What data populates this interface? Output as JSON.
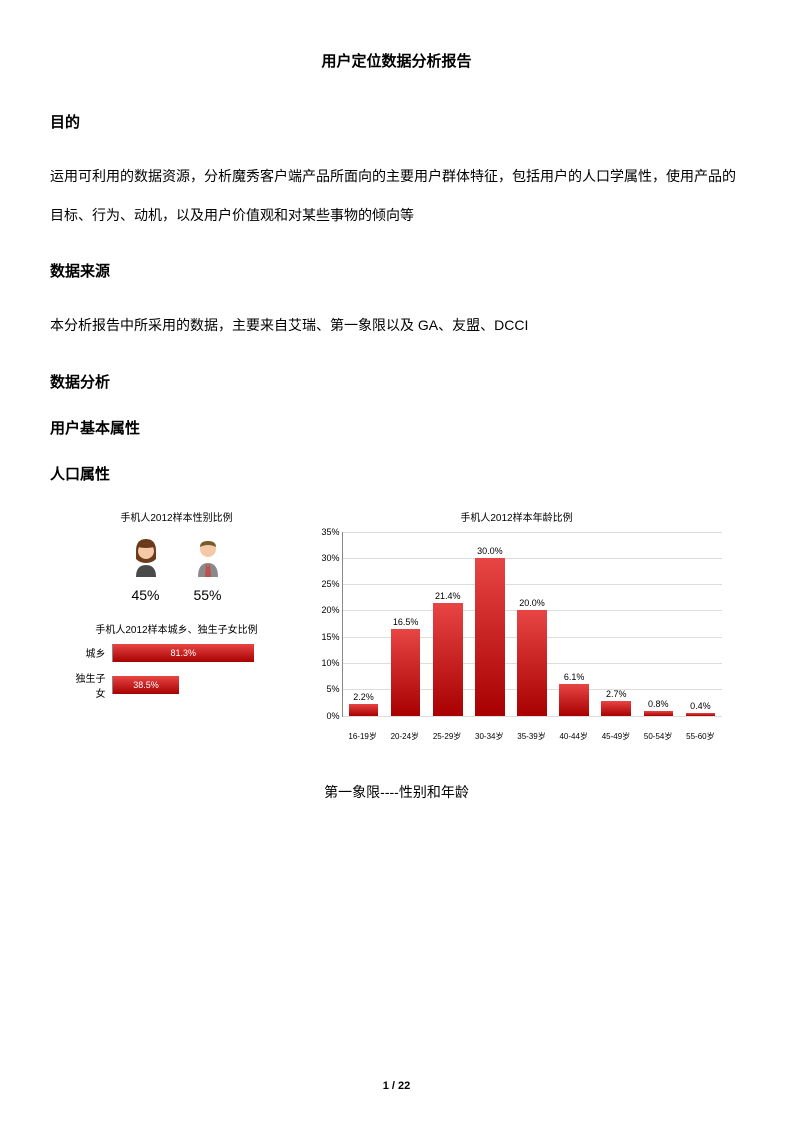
{
  "doc": {
    "title": "用户定位数据分析报告",
    "sections": {
      "purpose_heading": "目的",
      "purpose_text": "运用可利用的数据资源，分析魔秀客户端产品所面向的主要用户群体特征，包括用户的人口学属性，使用产品的目标、行为、动机，以及用户价值观和对某些事物的倾向等",
      "source_heading": "数据来源",
      "source_text": "本分析报告中所采用的数据，主要来自艾瑞、第一象限以及 GA、友盟、DCCI",
      "analysis_heading": "数据分析",
      "basic_heading": "用户基本属性",
      "demo_heading": "人口属性"
    },
    "caption": "第一象限----性别和年龄",
    "page": "1 / 22"
  },
  "gender_chart": {
    "title": "手机人2012样本性别比例",
    "female": {
      "pct_label": "45%",
      "skin_color": "#f5c9a5",
      "hair_color": "#6b3a1a",
      "body_color": "#4a4a4a"
    },
    "male": {
      "pct_label": "55%",
      "skin_color": "#f5c9a5",
      "hair_color": "#7a5a2a",
      "body_color": "#8a8a8a"
    }
  },
  "hbar_chart": {
    "title": "手机人2012样本城乡、独生子女比例",
    "rows": [
      {
        "label": "城乡",
        "value": 81.3,
        "text": "81.3%"
      },
      {
        "label": "独生子女",
        "value": 38.5,
        "text": "38.5%"
      }
    ],
    "max": 100,
    "bar_gradient_from": "#e84545",
    "bar_gradient_to": "#a80000",
    "axis_color": "#888888"
  },
  "age_chart": {
    "title": "手机人2012样本年龄比例",
    "type": "bar",
    "categories": [
      "16-19岁",
      "20-24岁",
      "25-29岁",
      "30-34岁",
      "35-39岁",
      "40-44岁",
      "45-49岁",
      "50-54岁",
      "55-60岁"
    ],
    "values": [
      2.2,
      16.5,
      21.4,
      30.0,
      20.0,
      6.1,
      2.7,
      0.8,
      0.4
    ],
    "value_labels": [
      "2.2%",
      "16.5%",
      "21.4%",
      "30.0%",
      "20.0%",
      "6.1%",
      "2.7%",
      "0.8%",
      "0.4%"
    ],
    "y_max": 35,
    "y_ticks": [
      0,
      5,
      10,
      15,
      20,
      25,
      30,
      35
    ],
    "y_tick_labels": [
      "0%",
      "5%",
      "10%",
      "15%",
      "20%",
      "25%",
      "30%",
      "35%"
    ],
    "bar_gradient_from": "#e84545",
    "bar_gradient_to": "#a80000",
    "grid_color": "#dddddd",
    "axis_color": "#888888",
    "label_fontsize": 9
  },
  "colors": {
    "text": "#000000",
    "background": "#ffffff"
  }
}
